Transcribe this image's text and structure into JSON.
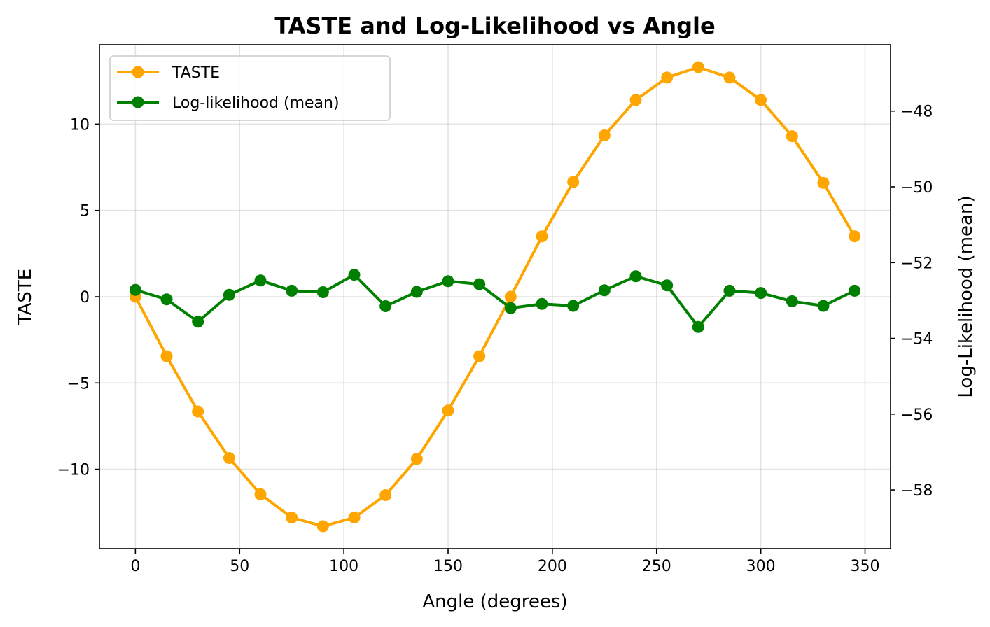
{
  "chart_data": {
    "type": "line",
    "title": "TASTE and Log-Likelihood vs Angle",
    "xlabel": "Angle (degrees)",
    "ylabel_left": "TASTE",
    "ylabel_right": "Log-Likelihood (mean)",
    "xlim": [
      -17.25,
      362.25
    ],
    "ylim_left": [
      -14.6,
      14.6
    ],
    "ylim_right": [
      -59.55,
      -46.25
    ],
    "x_ticks": [
      0,
      50,
      100,
      150,
      200,
      250,
      300,
      350
    ],
    "x_tick_labels": [
      "0",
      "50",
      "100",
      "150",
      "200",
      "250",
      "300",
      "350"
    ],
    "y_left_ticks": [
      -10,
      -5,
      0,
      5,
      10
    ],
    "y_left_tick_labels": [
      "−10",
      "−5",
      "0",
      "5",
      "10"
    ],
    "y_right_ticks": [
      -58,
      -56,
      -54,
      -52,
      -50,
      -48
    ],
    "y_right_tick_labels": [
      "−58",
      "−56",
      "−54",
      "−52",
      "−50",
      "−48"
    ],
    "grid": true,
    "legend_position": "upper-left",
    "x": [
      0,
      15,
      30,
      45,
      60,
      75,
      90,
      105,
      120,
      135,
      150,
      165,
      180,
      195,
      210,
      225,
      240,
      255,
      270,
      285,
      300,
      315,
      330,
      345
    ],
    "series": [
      {
        "name": "TASTE",
        "axis": "left",
        "color": "#ffa500",
        "values": [
          0,
          -3.45,
          -6.65,
          -9.35,
          -11.45,
          -12.8,
          -13.3,
          -12.8,
          -11.5,
          -9.4,
          -6.6,
          -3.45,
          0,
          3.5,
          6.65,
          9.35,
          11.4,
          12.7,
          13.3,
          12.7,
          11.4,
          9.3,
          6.6,
          3.5
        ]
      },
      {
        "name": "Log-likelihood (mean)",
        "axis": "right",
        "color": "#008000",
        "values": [
          -52.72,
          -52.97,
          -53.56,
          -52.85,
          -52.47,
          -52.74,
          -52.78,
          -52.32,
          -53.15,
          -52.77,
          -52.49,
          -52.57,
          -53.2,
          -53.09,
          -53.14,
          -52.73,
          -52.36,
          -52.6,
          -53.7,
          -52.74,
          -52.8,
          -53.02,
          -53.14,
          -52.74
        ]
      }
    ]
  }
}
